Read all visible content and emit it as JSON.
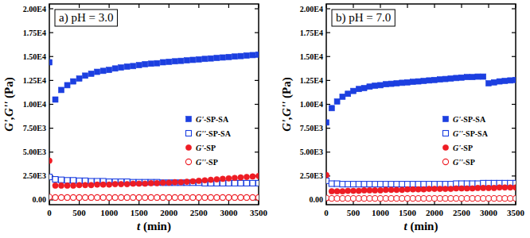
{
  "chart_data": [
    {
      "type": "scatter",
      "title": "a) pH = 3.0",
      "x_label": "t (min)",
      "y_label": "G',G'' (Pa)",
      "xlim": [
        0,
        3500
      ],
      "xticks": [
        0,
        500,
        1000,
        1500,
        2000,
        2500,
        3000,
        3500
      ],
      "ylim": [
        -500,
        20500
      ],
      "yticks": [
        {
          "value": 0,
          "label": "0.00"
        },
        {
          "value": 2500,
          "label": "2.50E3"
        },
        {
          "value": 5000,
          "label": "5.00E3"
        },
        {
          "value": 7500,
          "label": "7.50E3"
        },
        {
          "value": 10000,
          "label": "1.00E4"
        },
        {
          "value": 12500,
          "label": "1.25E4"
        },
        {
          "value": 15000,
          "label": "1.50E4"
        },
        {
          "value": 17500,
          "label": "1.75E4"
        },
        {
          "value": 20000,
          "label": "2.00E4"
        }
      ],
      "grid": false,
      "legend": "right",
      "x": [
        0,
        100,
        200,
        300,
        400,
        500,
        600,
        700,
        800,
        900,
        1000,
        1100,
        1200,
        1300,
        1400,
        1500,
        1600,
        1700,
        1800,
        1900,
        2000,
        2100,
        2200,
        2300,
        2400,
        2500,
        2600,
        2700,
        2800,
        2900,
        3000,
        3100,
        3200,
        3300,
        3400,
        3500
      ],
      "series": [
        {
          "name": "G'-SP-SA",
          "color": "#1c3fe0",
          "marker": "square",
          "values": [
            14400,
            10500,
            11500,
            12000,
            12400,
            12700,
            13000,
            13200,
            13400,
            13500,
            13600,
            13750,
            13850,
            13950,
            14000,
            14100,
            14200,
            14250,
            14300,
            14400,
            14450,
            14500,
            14550,
            14600,
            14650,
            14700,
            14750,
            14800,
            14850,
            14900,
            14950,
            15000,
            15050,
            15100,
            15150,
            15200
          ]
        },
        {
          "name": "G''-SP-SA",
          "color": "#1c3fe0",
          "marker": "open-square",
          "values": [
            2400,
            2150,
            2100,
            2050,
            2050,
            2000,
            2000,
            1950,
            1950,
            1950,
            1900,
            1900,
            1900,
            1900,
            1850,
            1850,
            1850,
            1850,
            1850,
            1800,
            1800,
            1800,
            1800,
            1800,
            1800,
            1800,
            1750,
            1750,
            1750,
            1750,
            1750,
            1750,
            1750,
            1750,
            1750,
            1750
          ]
        },
        {
          "name": "G'-SP",
          "color": "#ee1c24",
          "marker": "circle",
          "values": [
            4100,
            1500,
            1500,
            1500,
            1500,
            1550,
            1550,
            1550,
            1600,
            1600,
            1600,
            1650,
            1650,
            1650,
            1700,
            1700,
            1700,
            1750,
            1750,
            1800,
            1800,
            1850,
            1850,
            1900,
            1950,
            2000,
            2050,
            2100,
            2150,
            2200,
            2250,
            2300,
            2350,
            2400,
            2450,
            2500
          ]
        },
        {
          "name": "G''-SP",
          "color": "#ee1c24",
          "marker": "open-circle",
          "values": [
            300,
            250,
            250,
            250,
            250,
            250,
            250,
            250,
            250,
            250,
            250,
            250,
            250,
            250,
            250,
            250,
            250,
            250,
            250,
            250,
            250,
            250,
            250,
            250,
            250,
            250,
            250,
            250,
            250,
            250,
            250,
            250,
            250,
            250,
            250,
            250
          ]
        }
      ]
    },
    {
      "type": "scatter",
      "title": "b) pH = 7.0",
      "x_label": "t (min)",
      "y_label": "G',G'' (Pa)",
      "xlim": [
        0,
        3500
      ],
      "xticks": [
        0,
        500,
        1000,
        1500,
        2000,
        2500,
        3000,
        3500
      ],
      "ylim": [
        -500,
        20500
      ],
      "yticks": [
        {
          "value": 0,
          "label": "0.00"
        },
        {
          "value": 2500,
          "label": "2.50E3"
        },
        {
          "value": 5000,
          "label": "5.00E3"
        },
        {
          "value": 7500,
          "label": "7.50E3"
        },
        {
          "value": 10000,
          "label": "1.00E4"
        },
        {
          "value": 12500,
          "label": "1.25E4"
        },
        {
          "value": 15000,
          "label": "1.50E4"
        },
        {
          "value": 17500,
          "label": "1.75E4"
        },
        {
          "value": 20000,
          "label": "2.00E4"
        }
      ],
      "grid": false,
      "legend": "right",
      "x": [
        0,
        100,
        200,
        300,
        400,
        500,
        600,
        700,
        800,
        900,
        1000,
        1100,
        1200,
        1300,
        1400,
        1500,
        1600,
        1700,
        1800,
        1900,
        2000,
        2100,
        2200,
        2300,
        2400,
        2500,
        2600,
        2700,
        2800,
        2900,
        3000,
        3100,
        3200,
        3300,
        3400,
        3500
      ],
      "series": [
        {
          "name": "G'-SP-SA",
          "color": "#1c3fe0",
          "marker": "square",
          "values": [
            8100,
            9600,
            10300,
            10800,
            11100,
            11400,
            11600,
            11700,
            11850,
            11950,
            12000,
            12100,
            12150,
            12200,
            12250,
            12300,
            12350,
            12400,
            12450,
            12500,
            12550,
            12600,
            12650,
            12700,
            12750,
            12800,
            12850,
            12850,
            12900,
            12900,
            12200,
            12300,
            12400,
            12450,
            12500,
            12550
          ]
        },
        {
          "name": "G''-SP-SA",
          "color": "#1c3fe0",
          "marker": "open-square",
          "values": [
            2000,
            1700,
            1700,
            1650,
            1650,
            1650,
            1650,
            1650,
            1650,
            1650,
            1650,
            1650,
            1650,
            1650,
            1650,
            1650,
            1650,
            1650,
            1650,
            1650,
            1650,
            1650,
            1650,
            1650,
            1700,
            1700,
            1700,
            1700,
            1700,
            1750,
            1750,
            1750,
            1750,
            1750,
            1750,
            1750
          ]
        },
        {
          "name": "G'-SP",
          "color": "#ee1c24",
          "marker": "circle",
          "values": [
            2600,
            900,
            900,
            900,
            950,
            950,
            950,
            1000,
            1000,
            1000,
            1000,
            1050,
            1050,
            1050,
            1050,
            1100,
            1100,
            1100,
            1100,
            1150,
            1150,
            1150,
            1150,
            1150,
            1200,
            1200,
            1200,
            1200,
            1250,
            1250,
            1250,
            1250,
            1300,
            1300,
            1300,
            1300
          ]
        },
        {
          "name": "G''-SP",
          "color": "#ee1c24",
          "marker": "open-circle",
          "values": [
            200,
            150,
            150,
            150,
            150,
            150,
            150,
            150,
            150,
            150,
            150,
            150,
            150,
            150,
            150,
            150,
            150,
            150,
            150,
            150,
            150,
            150,
            150,
            150,
            150,
            150,
            150,
            150,
            150,
            150,
            150,
            150,
            150,
            150,
            150,
            150
          ]
        }
      ]
    }
  ]
}
